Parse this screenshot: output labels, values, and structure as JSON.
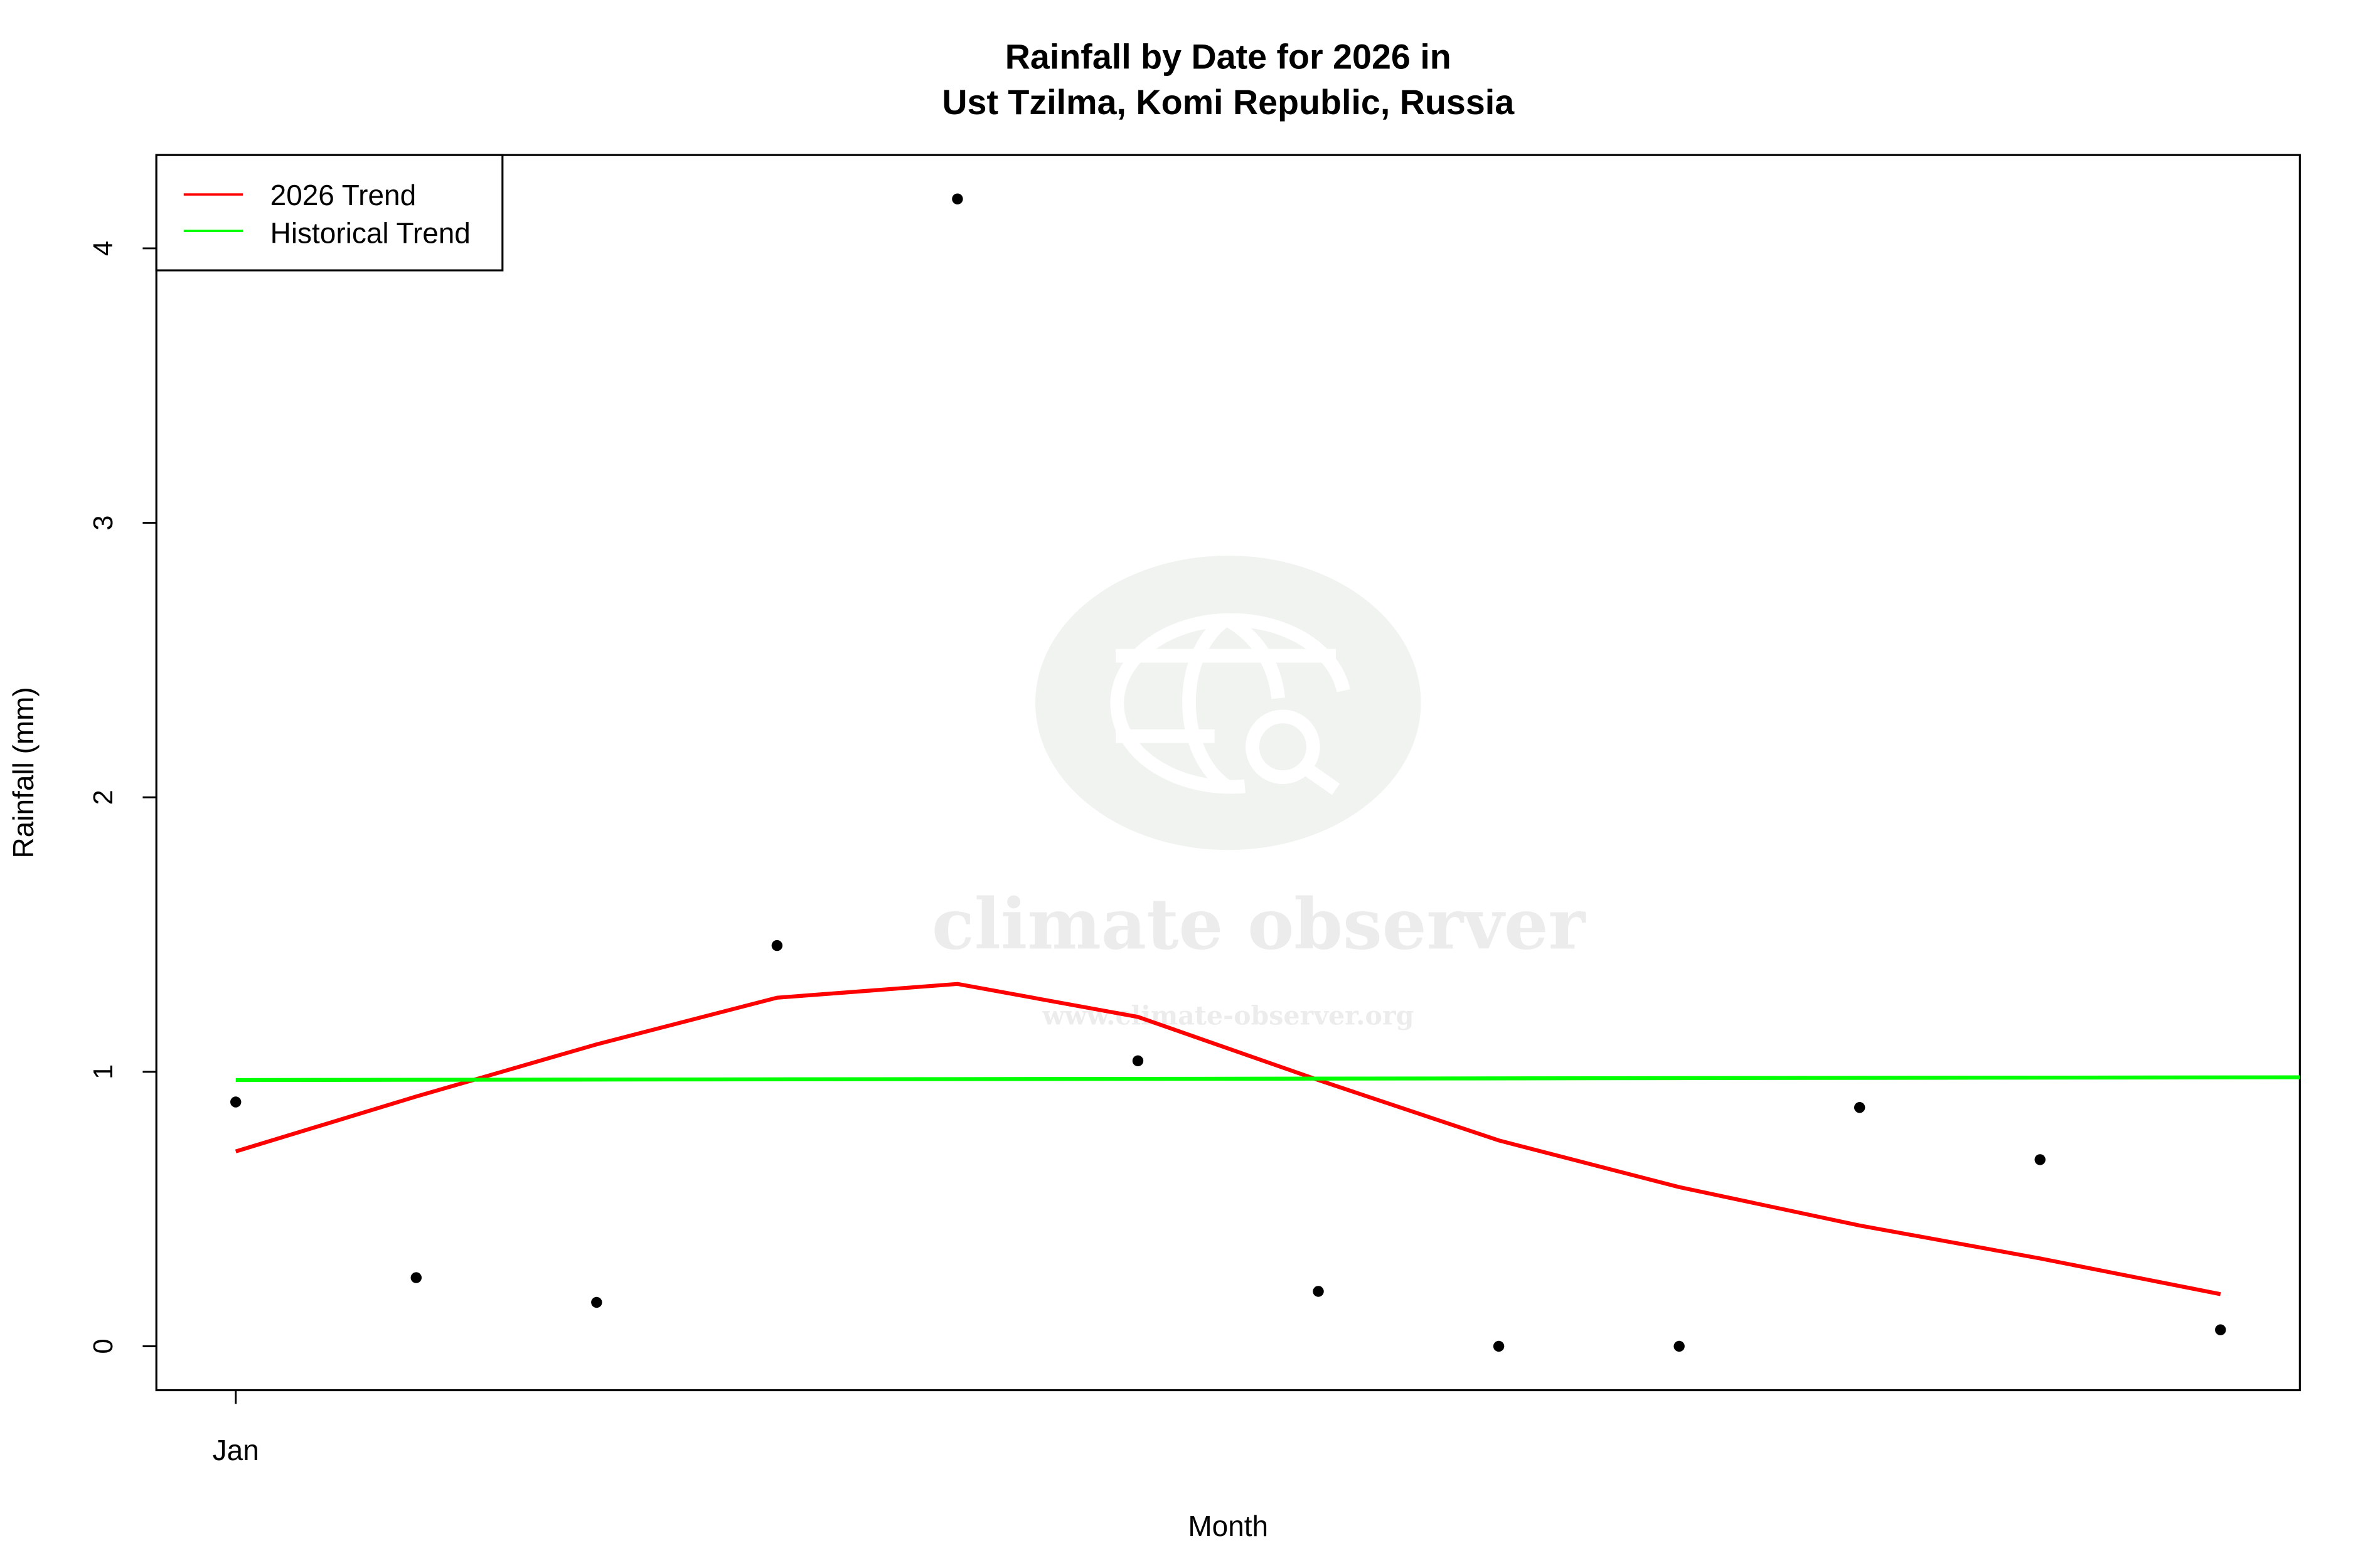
{
  "chart_data": {
    "type": "scatter",
    "title_line1": "Rainfall by Date for 2026 in",
    "title_line2": "Ust Tzilma, Komi Republic, Russia",
    "xlabel": "Month",
    "ylabel": "Rainfall (mm)",
    "x_ticks": [
      {
        "month": 1,
        "label": "Jan"
      }
    ],
    "y_ticks": [
      0,
      1,
      2,
      3,
      4
    ],
    "ylim": [
      -0.16,
      4.34
    ],
    "xlim": [
      0.56,
      12.44
    ],
    "grid": false,
    "legend_position": "top-left",
    "points": {
      "color": "#000000",
      "x": [
        1,
        2,
        3,
        4,
        5,
        6,
        7,
        8,
        9,
        10,
        11,
        12
      ],
      "y": [
        0.89,
        0.25,
        0.16,
        1.46,
        4.18,
        1.04,
        0.2,
        0.0,
        0.0,
        0.87,
        0.68,
        0.06
      ]
    },
    "series": [
      {
        "name": "2026 Trend",
        "color": "#ff0000",
        "x": [
          1,
          2,
          3,
          4,
          5,
          6,
          7,
          8,
          9,
          10,
          11,
          12
        ],
        "y": [
          0.71,
          0.91,
          1.1,
          1.27,
          1.32,
          1.2,
          0.97,
          0.75,
          0.58,
          0.44,
          0.32,
          0.19
        ]
      },
      {
        "name": "Historical Trend",
        "color": "#00ff00",
        "x": [
          1,
          12.44
        ],
        "y": [
          0.97,
          0.98
        ]
      }
    ]
  },
  "watermark": {
    "brand": "climate observer",
    "url": "www.climate-observer.org"
  }
}
